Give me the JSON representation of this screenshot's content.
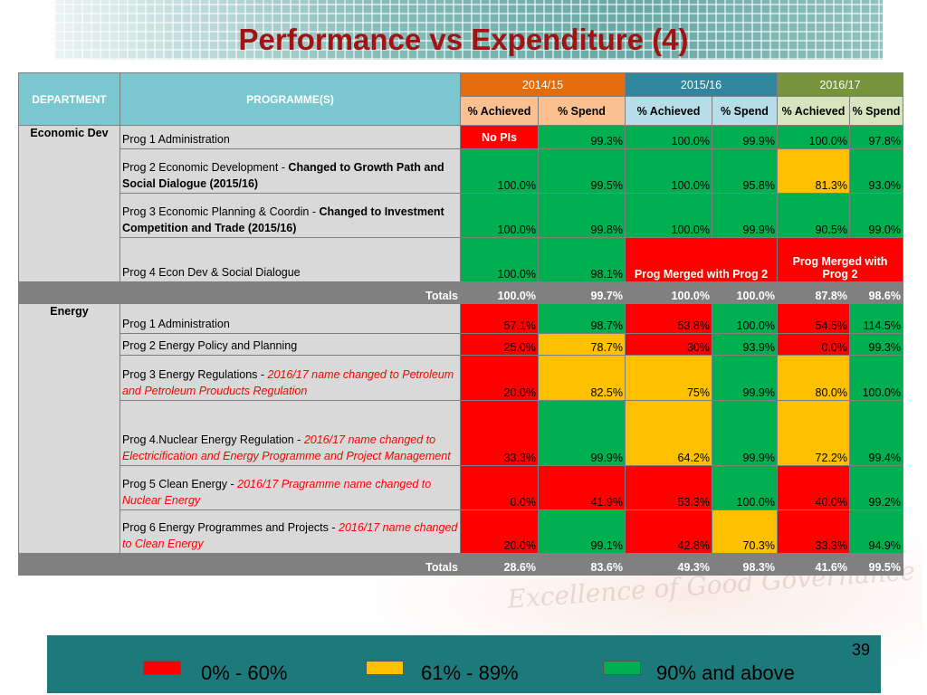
{
  "title": "Performance vs Expenditure (4)",
  "header": {
    "department": "DEPARTMENT",
    "programmes": "PROGRAMME(S)",
    "years": [
      "2014/15",
      "2015/16",
      "2016/17"
    ],
    "achieved": "% Achieved",
    "spend1": "%  Spend",
    "spend": "% Spend"
  },
  "economic": {
    "dept": "Economic Dev",
    "rows": [
      {
        "prog": "Prog 1 Administration",
        "c": [
          "No PIs",
          "99.3%",
          "100.0%",
          "99.9%",
          "100.0%",
          "97.8%"
        ]
      },
      {
        "prog_a": "Prog 2 Economic Development - ",
        "prog_b": "Changed to Growth Path and Social Dialogue (2015/16)",
        "c": [
          "100.0%",
          "99.5%",
          "100.0%",
          "95.8%",
          "81.3%",
          "93.0%"
        ]
      },
      {
        "prog_a": "Prog 3 Economic Planning & Coordin - ",
        "prog_b": "Changed to Investment Competition and Trade (2015/16)",
        "c": [
          "100.0%",
          "99.8%",
          "100.0%",
          "99.9%",
          "90.5%",
          "99.0%"
        ]
      },
      {
        "prog": "Prog 4 Econ Dev & Social Dialogue",
        "c": [
          "100.0%",
          "98.1%"
        ],
        "merged1": "Prog Merged with Prog 2",
        "merged2": "Prog Merged with Prog 2"
      }
    ],
    "totals_label": "Totals",
    "totals": [
      "100.0%",
      "99.7%",
      "100.0%",
      "100.0%",
      "87.8%",
      "98.6%"
    ]
  },
  "energy": {
    "dept": "Energy",
    "rows": [
      {
        "prog": "Prog 1 Administration",
        "c": [
          "57.1%",
          "98.7%",
          "53.8%",
          "100.0%",
          "54.5%",
          "114.5%"
        ]
      },
      {
        "prog": "Prog 2 Energy Policy and Planning",
        "c": [
          "25.0%",
          "78.7%",
          "30%",
          "93.9%",
          "0.0%",
          "99.3%"
        ]
      },
      {
        "prog_a": "Prog 3 Energy Regulations  - ",
        "prog_b": "2016/17 name changed to Petroleum and Petroleum Prouducts Regulation",
        "c": [
          "20.0%",
          "82.5%",
          "75%",
          "99.9%",
          "80.0%",
          "100.0%"
        ]
      },
      {
        "prog_a": "Prog 4.Nuclear Energy Regulation - ",
        "prog_b": "2016/17 name changed to Electricification and Energy Programme and Project Management",
        "c": [
          "33.3%",
          "99.9%",
          "64.2%",
          "99.9%",
          "72.2%",
          "99.4%"
        ]
      },
      {
        "prog_a": "Prog 5 Clean Energy - ",
        "prog_b": "2016/17 Pragramme name changed to Nuclear Energy",
        "c": [
          "0.0%",
          "41.9%",
          "53.3%",
          "100.0%",
          "40.0%",
          "99.2%"
        ]
      },
      {
        "prog_a": "Prog 6 Energy Programmes and Projects - ",
        "prog_b": "2016/17 name changed to Clean Energy",
        "c": [
          "20.0%",
          "99.1%",
          "42.8%",
          "70.3%",
          "33.3%",
          "94.9%"
        ]
      }
    ],
    "totals_label": "Totals",
    "totals": [
      "28.6%",
      "83.6%",
      "49.3%",
      "98.3%",
      "41.6%",
      "99.5%"
    ]
  },
  "legend": {
    "page": "39",
    "items": [
      "0% - 60%",
      "61% - 89%",
      "90% and above"
    ]
  },
  "colors": {
    "red": "#ff0000",
    "amber": "#ffc000",
    "green": "#00b050",
    "title": "#a01414",
    "footer": "#1d7a7a"
  }
}
